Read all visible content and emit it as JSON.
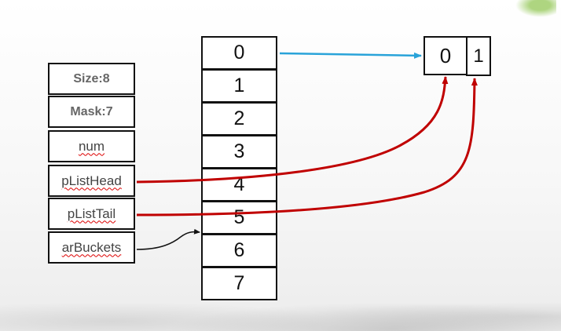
{
  "struct_fields": [
    {
      "label": "Size:8",
      "style": "bold"
    },
    {
      "label": "Mask:7",
      "style": "bold"
    },
    {
      "label": "num",
      "style": "wavy"
    },
    {
      "label": "pListHead",
      "style": "wavy"
    },
    {
      "label": "pListTail",
      "style": "wavy"
    },
    {
      "label": "arBuckets",
      "style": "wavy"
    }
  ],
  "buckets": [
    "0",
    "1",
    "2",
    "3",
    "4",
    "5",
    "6",
    "7"
  ],
  "node": {
    "first": "0",
    "second": "1"
  },
  "colors": {
    "bucket_link": "#29a3d9",
    "pointer_link": "#c00000",
    "array_link": "#111111"
  }
}
